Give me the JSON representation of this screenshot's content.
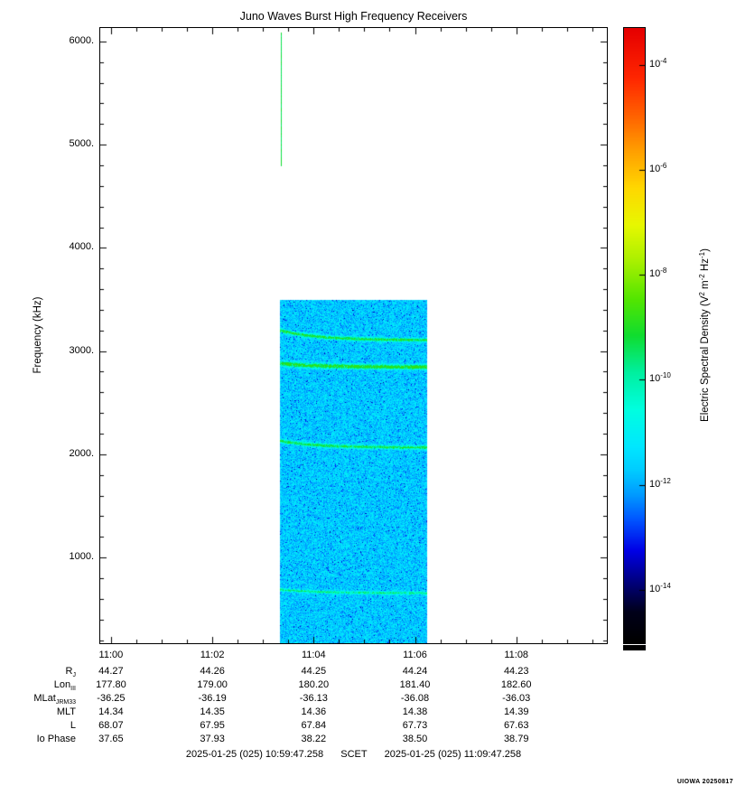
{
  "credit": "UIOWA 20250817",
  "footer": {
    "start": "2025-01-25 (025) 10:59:47.258",
    "middle": "SCET",
    "end": "2025-01-25 (025) 11:09:47.258"
  },
  "colorbar": {
    "label_parts": [
      {
        "text": "Electric Spectral Density (V"
      },
      {
        "sup": "2"
      },
      {
        "text": " m"
      },
      {
        "sup": "-2"
      },
      {
        "text": " Hz"
      },
      {
        "sup": "-1"
      },
      {
        "text": ")"
      }
    ],
    "tick_exponents": [
      -4,
      -6,
      -8,
      -10,
      -12,
      -14
    ]
  },
  "ephemeris": {
    "rows": [
      {
        "label_main": "R",
        "label_sub": "J",
        "values": [
          "44.27",
          "44.26",
          "44.25",
          "44.24",
          "44.23"
        ]
      },
      {
        "label_main": "Lon",
        "label_sub": "III",
        "values": [
          "177.80",
          "179.00",
          "180.20",
          "181.40",
          "182.60"
        ]
      },
      {
        "label_main": "MLat",
        "label_sub": "JRM33",
        "values": [
          "-36.25",
          "-36.19",
          "-36.13",
          "-36.08",
          "-36.03"
        ]
      },
      {
        "label_main": "MLT",
        "label_sub": "",
        "values": [
          "14.34",
          "14.35",
          "14.36",
          "14.38",
          "14.39"
        ]
      },
      {
        "label_main": "L",
        "label_sub": "",
        "values": [
          "68.07",
          "67.95",
          "67.84",
          "67.73",
          "67.63"
        ]
      },
      {
        "label_main": "Io Phase",
        "label_sub": "",
        "values": [
          "37.65",
          "37.93",
          "38.22",
          "38.50",
          "38.79"
        ]
      }
    ]
  },
  "chart_data": {
    "type": "heatmap",
    "subtype": "spectrogram",
    "title": "Juno Waves Burst High Frequency Receivers",
    "ylabel": "Frequency (kHz)",
    "xlabel": "",
    "x_axis": {
      "start_scet": "2025-01-25 (025) 10:59:47.258",
      "end_scet": "2025-01-25 (025) 11:09:47.258",
      "duration_seconds": 600,
      "ticks": [
        {
          "label": "11:00",
          "seconds": 12.742
        },
        {
          "label": "11:02",
          "seconds": 132.742
        },
        {
          "label": "11:04",
          "seconds": 252.742
        },
        {
          "label": "11:06",
          "seconds": 372.742
        },
        {
          "label": "11:08",
          "seconds": 492.742
        }
      ],
      "minor_tick_seconds": 30
    },
    "y_axis": {
      "unit": "kHz",
      "range": [
        170,
        6130
      ],
      "ticks": [
        {
          "label": "1000.",
          "khz": 1000
        },
        {
          "label": "2000.",
          "khz": 2000
        },
        {
          "label": "3000.",
          "khz": 3000
        },
        {
          "label": "4000.",
          "khz": 4000
        },
        {
          "label": "5000.",
          "khz": 5000
        },
        {
          "label": "6000.",
          "khz": 6000
        }
      ],
      "minor_tick_khz": 200
    },
    "value_axis": {
      "label": "Electric Spectral Density (V2 m-2 Hz-1)",
      "log10_range": [
        -15.0,
        -3.3
      ],
      "tick_exponents": [
        -4,
        -6,
        -8,
        -10,
        -12,
        -14
      ]
    },
    "colormap_stops": [
      {
        "t": 0.0,
        "color": "#000000"
      },
      {
        "t": 0.05,
        "color": "#00001a"
      },
      {
        "t": 0.1,
        "color": "#000080"
      },
      {
        "t": 0.15,
        "color": "#0000e6"
      },
      {
        "t": 0.2,
        "color": "#0055ff"
      },
      {
        "t": 0.24,
        "color": "#0099ff"
      },
      {
        "t": 0.28,
        "color": "#00ccff"
      },
      {
        "t": 0.32,
        "color": "#00e8ff"
      },
      {
        "t": 0.38,
        "color": "#00ffe0"
      },
      {
        "t": 0.44,
        "color": "#00f0a0"
      },
      {
        "t": 0.5,
        "color": "#10dd30"
      },
      {
        "t": 0.56,
        "color": "#55e600"
      },
      {
        "t": 0.62,
        "color": "#a8f000"
      },
      {
        "t": 0.68,
        "color": "#e8f800"
      },
      {
        "t": 0.74,
        "color": "#ffd800"
      },
      {
        "t": 0.8,
        "color": "#ffa000"
      },
      {
        "t": 0.86,
        "color": "#ff6000"
      },
      {
        "t": 0.92,
        "color": "#ff2600"
      },
      {
        "t": 1.0,
        "color": "#e60000"
      }
    ],
    "burst": {
      "t_start_seconds": 213,
      "t_end_seconds": 387,
      "f_min_khz": 170,
      "f_max_khz": 3500,
      "background_log10_range": [
        -12.35,
        -10.95
      ],
      "dark_speckle_fraction": 0.05,
      "band_decay_tau_seconds": 45,
      "bands": [
        {
          "f_start_khz": 3200,
          "f_end_khz": 3105,
          "sigma_khz": 12,
          "peak_delta_log10": 2.7
        },
        {
          "f_start_khz": 2880,
          "f_end_khz": 2845,
          "sigma_khz": 16,
          "peak_delta_log10": 3.0
        },
        {
          "f_start_khz": 2130,
          "f_end_khz": 2065,
          "sigma_khz": 12,
          "peak_delta_log10": 2.5
        },
        {
          "f_start_khz": 690,
          "f_end_khz": 655,
          "sigma_khz": 10,
          "peak_delta_log10": 1.9
        }
      ]
    },
    "spike": {
      "t_seconds": 214,
      "f_min_khz": 4800,
      "f_max_khz": 6090,
      "log10_value": -9.3
    }
  }
}
